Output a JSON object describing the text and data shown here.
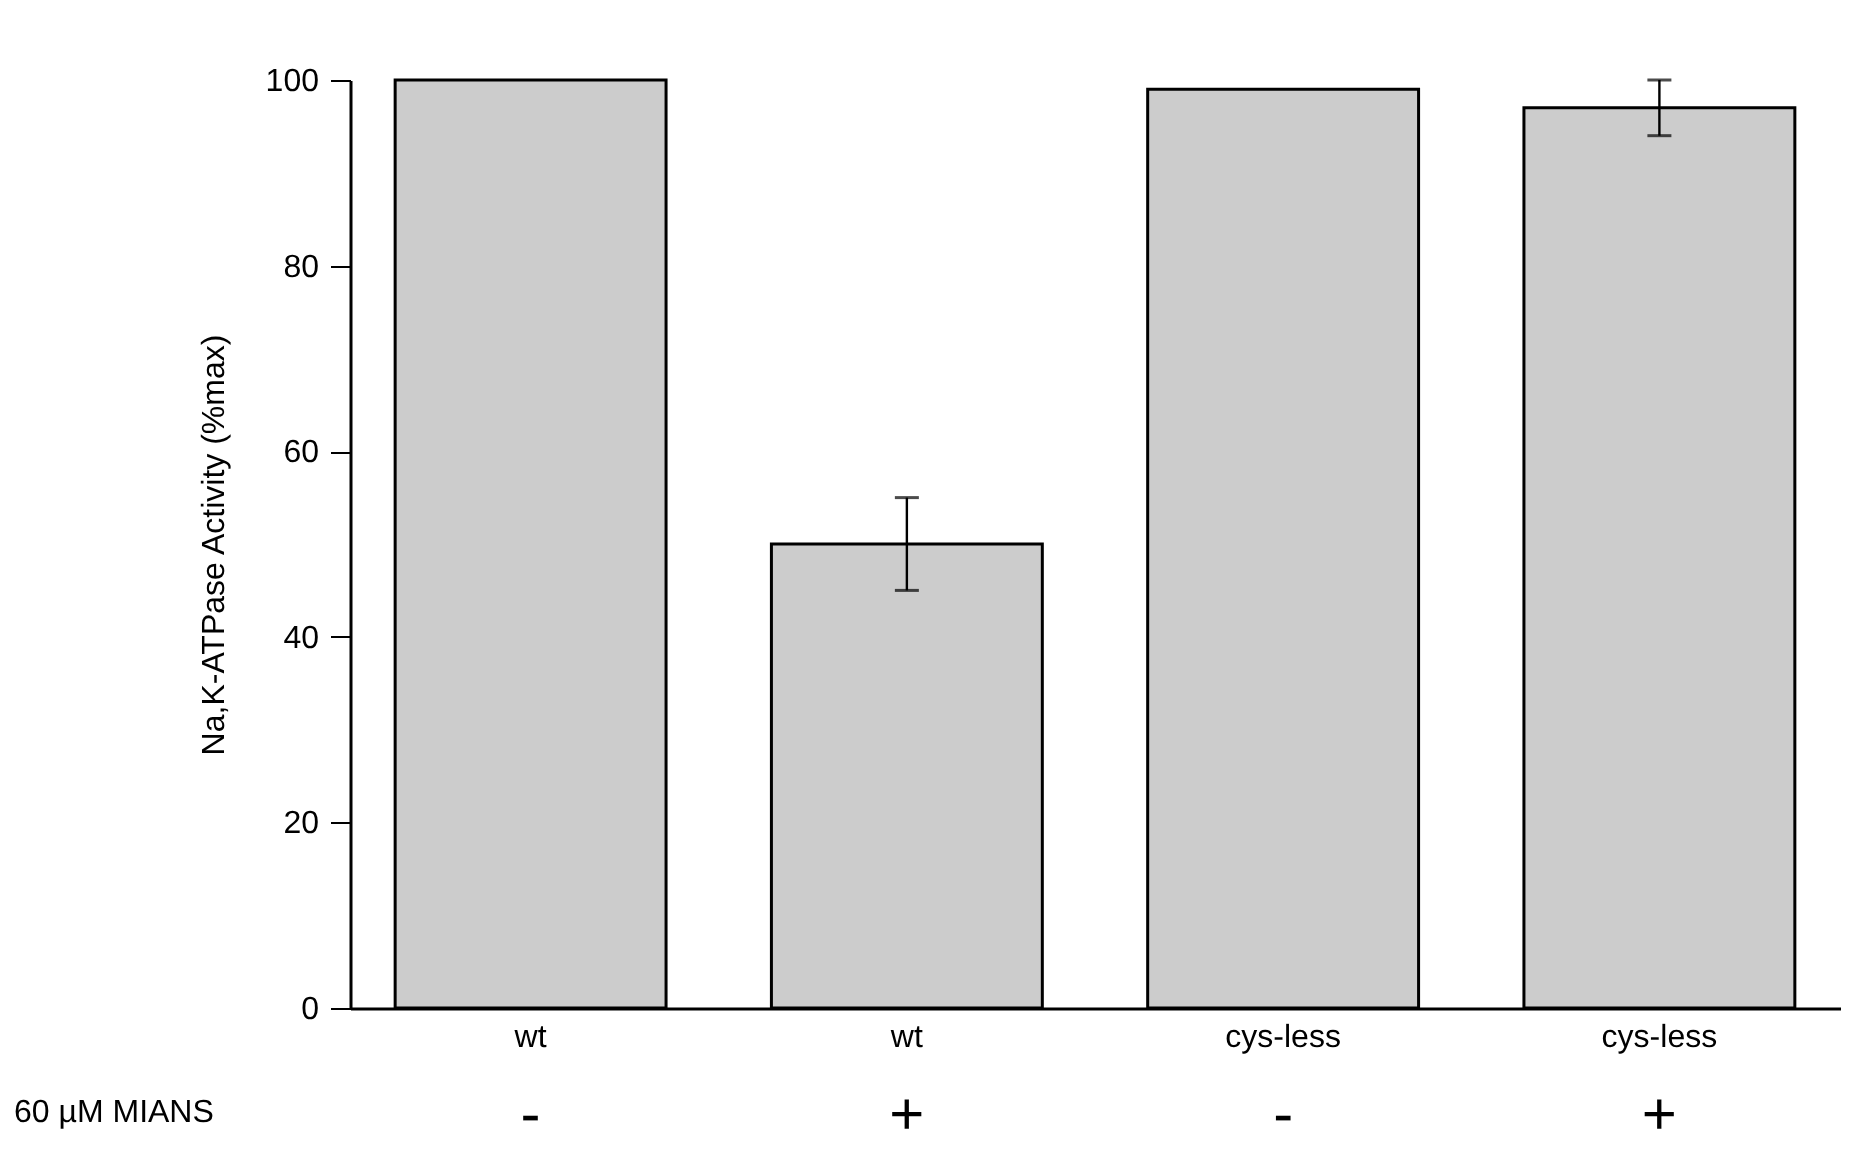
{
  "chart_data": {
    "type": "bar",
    "ylabel": "Na,K-ATPase Activity (%max)",
    "categories": [
      "wt",
      "wt",
      "cys-less",
      "cys-less"
    ],
    "values": [
      100,
      50,
      99,
      97
    ],
    "errors": [
      null,
      5,
      null,
      3
    ],
    "color": "#cccccc",
    "ylim": [
      0,
      100
    ],
    "yticks": [
      0,
      20,
      40,
      60,
      80,
      100
    ],
    "grid": false,
    "annotations": [
      "60 µM MIANS",
      "-",
      "+",
      "-",
      "+"
    ]
  }
}
